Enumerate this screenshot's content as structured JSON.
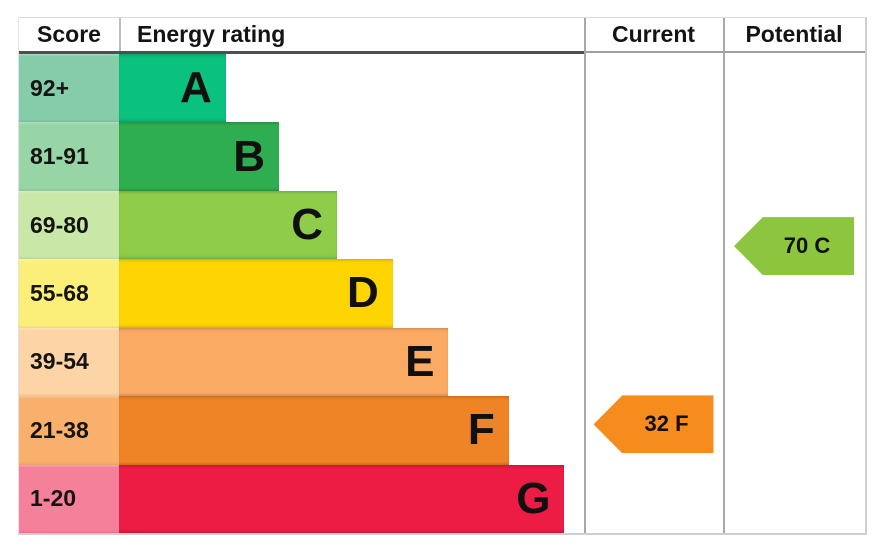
{
  "header": {
    "score": "Score",
    "energy_rating": "Energy rating",
    "current": "Current",
    "potential": "Potential"
  },
  "chart_data": {
    "type": "bar",
    "subtype": "epc-energy-rating-chart",
    "orientation": "horizontal",
    "columns": [
      "Score",
      "Energy rating",
      "Current",
      "Potential"
    ],
    "bands": [
      {
        "letter": "A",
        "score": "92+",
        "bar_color": "#0bc17e",
        "cell_color": "#85ccab",
        "width_pct": 23
      },
      {
        "letter": "B",
        "score": "81-91",
        "bar_color": "#2fae51",
        "cell_color": "#97d5a6",
        "width_pct": 34.5
      },
      {
        "letter": "C",
        "score": "69-80",
        "bar_color": "#8ecc49",
        "cell_color": "#c9e7a7",
        "width_pct": 47
      },
      {
        "letter": "D",
        "score": "55-68",
        "bar_color": "#fed500",
        "cell_color": "#fbef7a",
        "width_pct": 59
      },
      {
        "letter": "E",
        "score": "39-54",
        "bar_color": "#fbaa64",
        "cell_color": "#fdd4a6",
        "width_pct": 71
      },
      {
        "letter": "F",
        "score": "21-38",
        "bar_color": "#ef8426",
        "cell_color": "#f9b06c",
        "width_pct": 84
      },
      {
        "letter": "G",
        "score": "1-20",
        "bar_color": "#ec1c45",
        "cell_color": "#f5809a",
        "width_pct": 96
      }
    ],
    "arrows": [
      {
        "column": "current",
        "label": "32 F",
        "value": 32,
        "band": "F",
        "color": "#f78c1e"
      },
      {
        "column": "potential",
        "label": "70 C",
        "value": 70,
        "band": "C",
        "color": "#8cc63e"
      }
    ]
  }
}
